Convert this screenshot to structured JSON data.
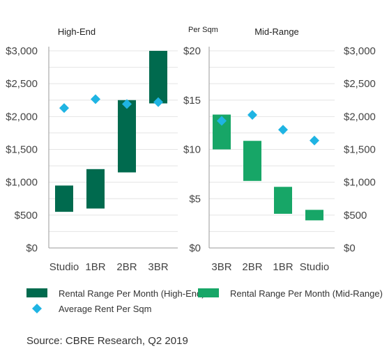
{
  "colors": {
    "high_end_bar": "#006a4e",
    "mid_range_bar": "#17a667",
    "marker": "#1fb4e3",
    "grid": "#e4e4e4",
    "axis": "#9a9a9a"
  },
  "chart_data": [
    {
      "type": "floating-bar",
      "title": "High-End",
      "categories": [
        "Studio",
        "1BR",
        "2BR",
        "3BR"
      ],
      "series": [
        {
          "name": "Rental Range Per Month (High-End)",
          "ranges": [
            [
              550,
              950
            ],
            [
              600,
              1200
            ],
            [
              1150,
              2250
            ],
            [
              2200,
              3000
            ]
          ]
        }
      ],
      "left_axis": {
        "ticks": [
          "$0",
          "$500",
          "$1,000",
          "$1,500",
          "$2,000",
          "$2,500",
          "$3,000"
        ],
        "lim": [
          0,
          3000
        ]
      },
      "right_axis": {
        "unit_label": "Per Sqm",
        "ticks": [
          "$0",
          "$5",
          "$10",
          "$15",
          "$20"
        ],
        "lim": [
          0,
          20
        ]
      },
      "markers": {
        "name": "Average Rent Per Sqm",
        "values": [
          14.2,
          15.1,
          14.6,
          14.8
        ]
      },
      "grid": true
    },
    {
      "type": "floating-bar",
      "title": "Mid-Range",
      "categories": [
        "3BR",
        "2BR",
        "1BR",
        "Studio"
      ],
      "series": [
        {
          "name": "Rental Range Per Month (Mid-Range)",
          "ranges": [
            [
              1500,
              2030
            ],
            [
              1020,
              1630
            ],
            [
              520,
              930
            ],
            [
              420,
              580
            ]
          ]
        }
      ],
      "left_axis": {
        "ticks": [
          "$0",
          "$500",
          "$1,000",
          "$1,500",
          "$2,000",
          "$2,500",
          "$3,000"
        ],
        "lim": [
          0,
          3000
        ]
      },
      "right_axis": {
        "ticks": [
          "$0",
          "$5",
          "$10",
          "$15",
          "$20"
        ],
        "lim": [
          0,
          20
        ]
      },
      "markers": {
        "name": "Average Rent Per Sqm",
        "values": [
          12.9,
          13.5,
          12.0,
          10.9
        ]
      },
      "grid": true
    }
  ],
  "legend": {
    "high_end_label": "Rental Range Per Month (High-End)",
    "mid_range_label": "Rental Range Per Month (Mid-Range)",
    "marker_label": "Average Rent Per Sqm"
  },
  "source": "Source: CBRE Research, Q2 2019"
}
